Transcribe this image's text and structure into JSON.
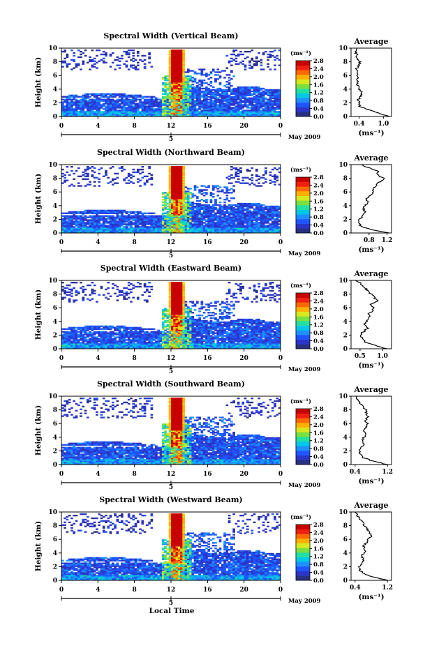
{
  "figure": {
    "x_axis_label": "Local Time",
    "date_label": "May 2009",
    "day_label": "5",
    "colorbar_unit": "(ms⁻¹)",
    "colorbar_ticks": [
      "0.0",
      "0.4",
      "0.8",
      "1.2",
      "1.6",
      "2.0",
      "2.4",
      "2.8"
    ],
    "colorbar_colors": [
      "#283080",
      "#2b35c8",
      "#1f55ff",
      "#1e90ff",
      "#00c8e6",
      "#24e0a0",
      "#7ae040",
      "#d8e81e",
      "#ffb000",
      "#ff6a00",
      "#f02010",
      "#c80000"
    ],
    "average_title": "Average",
    "average_xlabel": "(ms⁻¹)"
  },
  "chart_data": [
    {
      "type": "heatmap",
      "title": "Spectral Width (Vertical Beam)",
      "ylabel": "Height (km)",
      "xlabel": "Local Time",
      "xlim": [
        0,
        24
      ],
      "x_ticks": [
        "0",
        "4",
        "8",
        "12",
        "16",
        "20",
        "0"
      ],
      "ylim": [
        0,
        10
      ],
      "y_ticks": [
        "0",
        "2",
        "4",
        "6",
        "8",
        "10"
      ],
      "colorbar": {
        "label": "(ms⁻¹)",
        "range": [
          0,
          2.8
        ],
        "ticks": [
          "0.0",
          "0.4",
          "0.8",
          "1.2",
          "1.6",
          "2.0",
          "2.4",
          "2.8"
        ]
      },
      "average": {
        "title": "Average",
        "xlabel": "(ms⁻¹)",
        "xlim": [
          0.2,
          1.2
        ],
        "x_ticks": [
          "0.4",
          "1.0"
        ],
        "heights": [
          0,
          0.5,
          1,
          1.5,
          2,
          2.5,
          3,
          3.5,
          4,
          4.5,
          5,
          5.5,
          6,
          6.5,
          7,
          7.5,
          8,
          8.5,
          9,
          9.5,
          10
        ],
        "values": [
          1.15,
          0.88,
          0.62,
          0.42,
          0.4,
          0.38,
          0.45,
          0.47,
          0.41,
          0.36,
          0.35,
          0.37,
          0.36,
          0.38,
          0.34,
          0.4,
          0.42,
          0.33,
          0.35,
          0.3,
          0.32
        ]
      }
    },
    {
      "type": "heatmap",
      "title": "Spectral Width (Northward Beam)",
      "ylabel": "Height (km)",
      "xlabel": "Local Time",
      "xlim": [
        0,
        24
      ],
      "x_ticks": [
        "0",
        "4",
        "8",
        "12",
        "16",
        "20",
        "0"
      ],
      "ylim": [
        0,
        10
      ],
      "y_ticks": [
        "0",
        "2",
        "4",
        "6",
        "8",
        "10"
      ],
      "colorbar": {
        "label": "(ms⁻¹)",
        "range": [
          0,
          2.8
        ],
        "ticks": [
          "0.0",
          "0.4",
          "0.8",
          "1.2",
          "1.6",
          "2.0",
          "2.4",
          "2.8"
        ]
      },
      "average": {
        "title": "Average",
        "xlabel": "(ms⁻¹)",
        "xlim": [
          0.4,
          1.3
        ],
        "x_ticks": [
          "0.8",
          "1.2"
        ],
        "heights": [
          0,
          0.5,
          1,
          1.5,
          2,
          2.5,
          3,
          3.5,
          4,
          4.5,
          5,
          5.5,
          6,
          6.5,
          7,
          7.5,
          8,
          8.5,
          9,
          9.5,
          10
        ],
        "values": [
          1.25,
          0.85,
          0.62,
          0.58,
          0.6,
          0.65,
          0.72,
          0.66,
          0.7,
          0.78,
          0.75,
          0.82,
          0.9,
          0.88,
          0.95,
          1.05,
          1.12,
          0.98,
          1.02,
          0.8,
          0.62
        ]
      }
    },
    {
      "type": "heatmap",
      "title": "Spectral Width (Eastward Beam)",
      "ylabel": "Height (km)",
      "xlabel": "Local Time",
      "xlim": [
        0,
        24
      ],
      "x_ticks": [
        "0",
        "4",
        "8",
        "12",
        "16",
        "20",
        "0"
      ],
      "ylim": [
        0,
        10
      ],
      "y_ticks": [
        "0",
        "2",
        "4",
        "6",
        "8",
        "10"
      ],
      "colorbar": {
        "label": "(ms⁻¹)",
        "range": [
          0,
          2.8
        ],
        "ticks": [
          "0.0",
          "0.4",
          "0.8",
          "1.2",
          "1.6",
          "2.0",
          "2.4",
          "2.8"
        ]
      },
      "average": {
        "title": "Average",
        "xlabel": "(ms⁻¹)",
        "xlim": [
          0.3,
          1.2
        ],
        "x_ticks": [
          "0.5",
          "1.0"
        ],
        "heights": [
          0,
          0.5,
          1,
          1.5,
          2,
          2.5,
          3,
          3.5,
          4,
          4.5,
          5,
          5.5,
          6,
          6.5,
          7,
          7.5,
          8,
          8.5,
          9,
          9.5,
          10
        ],
        "values": [
          1.1,
          0.82,
          0.6,
          0.55,
          0.5,
          0.58,
          0.66,
          0.6,
          0.65,
          0.72,
          0.68,
          0.78,
          0.8,
          0.74,
          0.88,
          0.82,
          0.74,
          0.66,
          0.6,
          0.52,
          0.42
        ]
      }
    },
    {
      "type": "heatmap",
      "title": "Spectral Width (Southward Beam)",
      "ylabel": "Height (km)",
      "xlabel": "Local Time",
      "xlim": [
        0,
        24
      ],
      "x_ticks": [
        "0",
        "4",
        "8",
        "12",
        "16",
        "20",
        "0"
      ],
      "ylim": [
        0,
        10
      ],
      "y_ticks": [
        "0",
        "2",
        "4",
        "6",
        "8",
        "10"
      ],
      "colorbar": {
        "label": "(ms⁻¹)",
        "range": [
          0,
          2.8
        ],
        "ticks": [
          "0.0",
          "0.4",
          "0.8",
          "1.2",
          "1.6",
          "2.0",
          "2.4",
          "2.8"
        ]
      },
      "average": {
        "title": "Average",
        "xlabel": "(ms⁻¹)",
        "xlim": [
          0.3,
          1.3
        ],
        "x_ticks": [
          "0.4",
          "1.2"
        ],
        "heights": [
          0,
          0.5,
          1,
          1.5,
          2,
          2.5,
          3,
          3.5,
          4,
          4.5,
          5,
          5.5,
          6,
          6.5,
          7,
          7.5,
          8,
          8.5,
          9,
          9.5,
          10
        ],
        "values": [
          1.2,
          0.85,
          0.6,
          0.52,
          0.5,
          0.55,
          0.62,
          0.58,
          0.62,
          0.66,
          0.6,
          0.68,
          0.7,
          0.65,
          0.72,
          0.68,
          0.66,
          0.58,
          0.52,
          0.45,
          0.4
        ]
      }
    },
    {
      "type": "heatmap",
      "title": "Spectral Width (Westward Beam)",
      "ylabel": "Height (km)",
      "xlabel": "Local Time",
      "xlim": [
        0,
        24
      ],
      "x_ticks": [
        "0",
        "4",
        "8",
        "12",
        "16",
        "20",
        "0"
      ],
      "ylim": [
        0,
        10
      ],
      "y_ticks": [
        "0",
        "2",
        "4",
        "6",
        "8",
        "10"
      ],
      "colorbar": {
        "label": "(ms⁻¹)",
        "range": [
          0,
          2.8
        ],
        "ticks": [
          "0.0",
          "0.4",
          "0.8",
          "1.2",
          "1.6",
          "2.0",
          "2.4",
          "2.8"
        ]
      },
      "average": {
        "title": "Average",
        "xlabel": "(ms⁻¹)",
        "xlim": [
          0.3,
          1.3
        ],
        "x_ticks": [
          "0.4",
          "1.2"
        ],
        "heights": [
          0,
          0.5,
          1,
          1.5,
          2,
          2.5,
          3,
          3.5,
          4,
          4.5,
          5,
          5.5,
          6,
          6.5,
          7,
          7.5,
          8,
          8.5,
          9,
          9.5,
          10
        ],
        "values": [
          1.2,
          0.85,
          0.6,
          0.52,
          0.5,
          0.55,
          0.6,
          0.56,
          0.62,
          0.65,
          0.6,
          0.68,
          0.72,
          0.82,
          0.75,
          0.7,
          0.64,
          0.58,
          0.52,
          0.45,
          0.4
        ]
      }
    }
  ]
}
